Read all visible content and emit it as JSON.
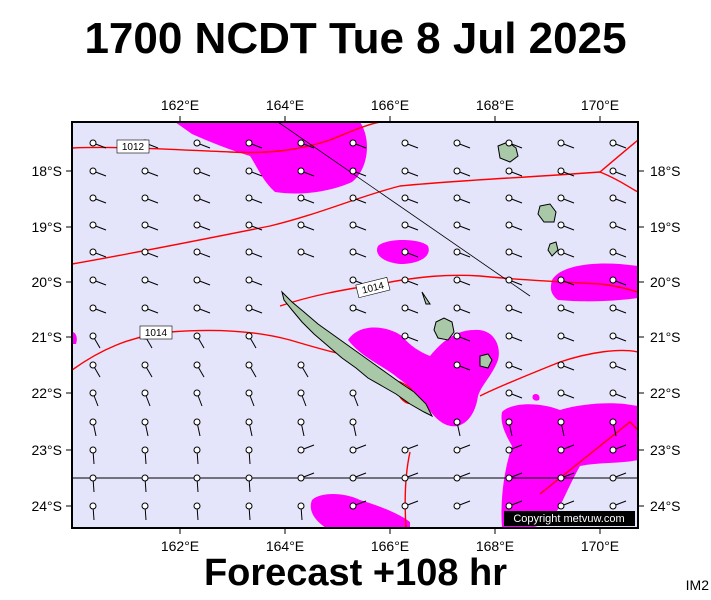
{
  "title": "1700 NCDT Tue 8 Jul 2025",
  "footer": "Forecast +108 hr",
  "image_code": "IM2",
  "copyright": "Copyright metvuw.com",
  "longitude_labels": [
    "162°E",
    "164°E",
    "166°E",
    "168°E",
    "170°E"
  ],
  "latitude_labels": [
    "18°S",
    "19°S",
    "20°S",
    "21°S",
    "22°S",
    "23°S",
    "24°S"
  ],
  "isobar_labels": [
    "1012",
    "1014",
    "1014"
  ],
  "colors": {
    "ocean": "#e4e4fb",
    "precip": "#ff00ff",
    "isobar": "#ff0000",
    "land": "#a8c8a8"
  }
}
